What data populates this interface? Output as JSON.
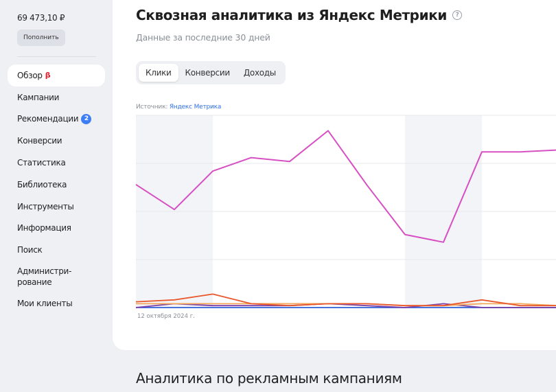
{
  "sidebar": {
    "balance": "69 473,10 ₽",
    "topup_label": "Пополнить",
    "items": [
      {
        "label": "Обзор",
        "beta": "β"
      },
      {
        "label": "Кампании"
      },
      {
        "label": "Рекомендации",
        "badge": "2"
      },
      {
        "label": "Конверсии"
      },
      {
        "label": "Статистика"
      },
      {
        "label": "Библиотека"
      },
      {
        "label": "Инструменты"
      },
      {
        "label": "Информация"
      },
      {
        "label": "Поиск"
      },
      {
        "label": "Администри-\nрование"
      },
      {
        "label": "Мои клиенты"
      }
    ]
  },
  "main": {
    "title": "Сквозная аналитика из Яндекс Метрики",
    "subtitle": "Данные за последние 30 дней",
    "tabs": [
      "Клики",
      "Конверсии",
      "Доходы"
    ],
    "active_tab": "Клики",
    "source_prefix": "Источник:",
    "source_link": "Яндекс Метрика",
    "date_label": "12 октября 2024 г.",
    "section_title": "Аналитика по рекламным кампаниям"
  },
  "chart_data": {
    "type": "line",
    "x_start_label": "12 октября 2024 г.",
    "series": [
      {
        "color": "#d64fc3",
        "values": [
          64,
          51,
          71,
          78,
          76,
          92,
          64,
          38,
          34,
          81,
          81,
          82
        ]
      },
      {
        "color": "#e8582c",
        "values": [
          3,
          4,
          7,
          2,
          1,
          2,
          2,
          1,
          1,
          4,
          1,
          1
        ]
      },
      {
        "color": "#f2a65a",
        "values": [
          2,
          2,
          2,
          2,
          2,
          2,
          2,
          1,
          1,
          2,
          2,
          1
        ]
      },
      {
        "color": "#7a3fa8",
        "values": [
          0,
          2,
          1,
          1,
          1,
          2,
          1,
          0,
          2,
          0,
          0,
          0
        ]
      },
      {
        "color": "#2f5fd6",
        "values": [
          0,
          0,
          0,
          0,
          0,
          0,
          0,
          0,
          0,
          0,
          0,
          0
        ]
      }
    ],
    "ylim": [
      0,
      100
    ],
    "grid": true
  }
}
